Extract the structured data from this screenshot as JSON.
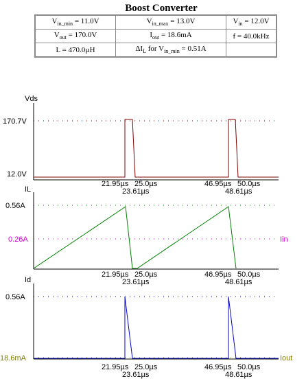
{
  "title": "Boost Converter",
  "params": [
    [
      {
        "main": "V",
        "sub": "in_min",
        "rest": " = 11.0V"
      },
      {
        "main": "V",
        "sub": "in_max",
        "rest": " = 13.0V"
      },
      {
        "main": "V",
        "sub": "in",
        "rest": " = 12.0V"
      }
    ],
    [
      {
        "main": "V",
        "sub": "out",
        "rest": " = 170.0V"
      },
      {
        "main": "I",
        "sub": "out",
        "rest": " = 18.6mA"
      },
      {
        "main": "f = 40.0kHz",
        "sub": "",
        "rest": ""
      }
    ],
    [
      {
        "main": "L = 470.0µH",
        "sub": "",
        "rest": ""
      },
      {
        "main": "ΔI",
        "sub": "L",
        "rest": " for V",
        "sub2": "in_min",
        "rest2": " = 0.51A"
      },
      {
        "main": "",
        "sub": "",
        "rest": ""
      }
    ]
  ],
  "plots": {
    "vds": {
      "label": "Vds",
      "y_high": "170.7V",
      "y_low": "12.0V",
      "color": "#800000",
      "t_labels_top": [
        "21.95µs",
        "25.0µs",
        "46.95µs",
        "50.0µs"
      ],
      "t_labels_bottom": [
        "23.61µs",
        "48.61µs"
      ]
    },
    "il": {
      "label": "IL",
      "y_high": "0.56A",
      "y_mid": "0.26A",
      "mid_label": "Iin",
      "mid_color": "#cc00cc",
      "color": "#008000",
      "t_labels_top": [
        "21.95µs",
        "25.0µs",
        "46.95µs",
        "50.0µs"
      ],
      "t_labels_bottom": [
        "23.61µs",
        "48.61µs"
      ]
    },
    "id": {
      "label": "Id",
      "y_high": "0.56A",
      "y_low": "18.6mA",
      "low_label": "Iout",
      "low_color": "#808000",
      "color": "#0000cc",
      "t_labels_top": [
        "21.95µs",
        "25.0µs",
        "46.95µs",
        "50.0µs"
      ],
      "t_labels_bottom": [
        "23.61µs",
        "48.61µs"
      ]
    }
  }
}
